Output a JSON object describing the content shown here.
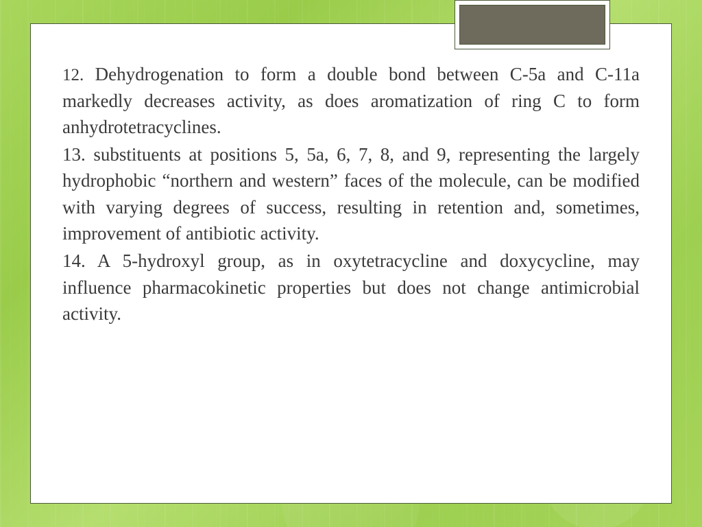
{
  "slide": {
    "background": {
      "gradient_colors": [
        "#a8d65c",
        "#9acc4a",
        "#b5de6f",
        "#9dcf50",
        "#a6d459"
      ],
      "pattern": "vertical-stripes-geometric",
      "stripe_color": "rgba(255,255,255,0.08)"
    },
    "frame": {
      "background_color": "#ffffff",
      "border_color": "#4a5a3a",
      "tab_color": "#6e6a5c",
      "tab_border_color": "#ffffff"
    },
    "text_color": "#3a3a3a",
    "font_family": "serif",
    "body_fontsize_pt": 20,
    "paragraphs": [
      {
        "number": "12.",
        "text": "Dehydrogenation to form a double bond between C-5a and C-11a markedly decreases activity, as does aromatization of ring C to form anhydrotetracyclines."
      },
      {
        "number": "13.",
        "text": "substituents at positions 5, 5a, 6, 7, 8, and 9, representing the largely hydrophobic “northern and western” faces of the molecule, can be modified with varying degrees of success, resulting in retention and, sometimes, improvement of antibiotic activity."
      },
      {
        "number": "14.",
        "text": "A 5-hydroxyl group, as in oxytetracycline and doxycycline, may influence pharmacokinetic properties but does not change antimicrobial activity."
      }
    ]
  }
}
